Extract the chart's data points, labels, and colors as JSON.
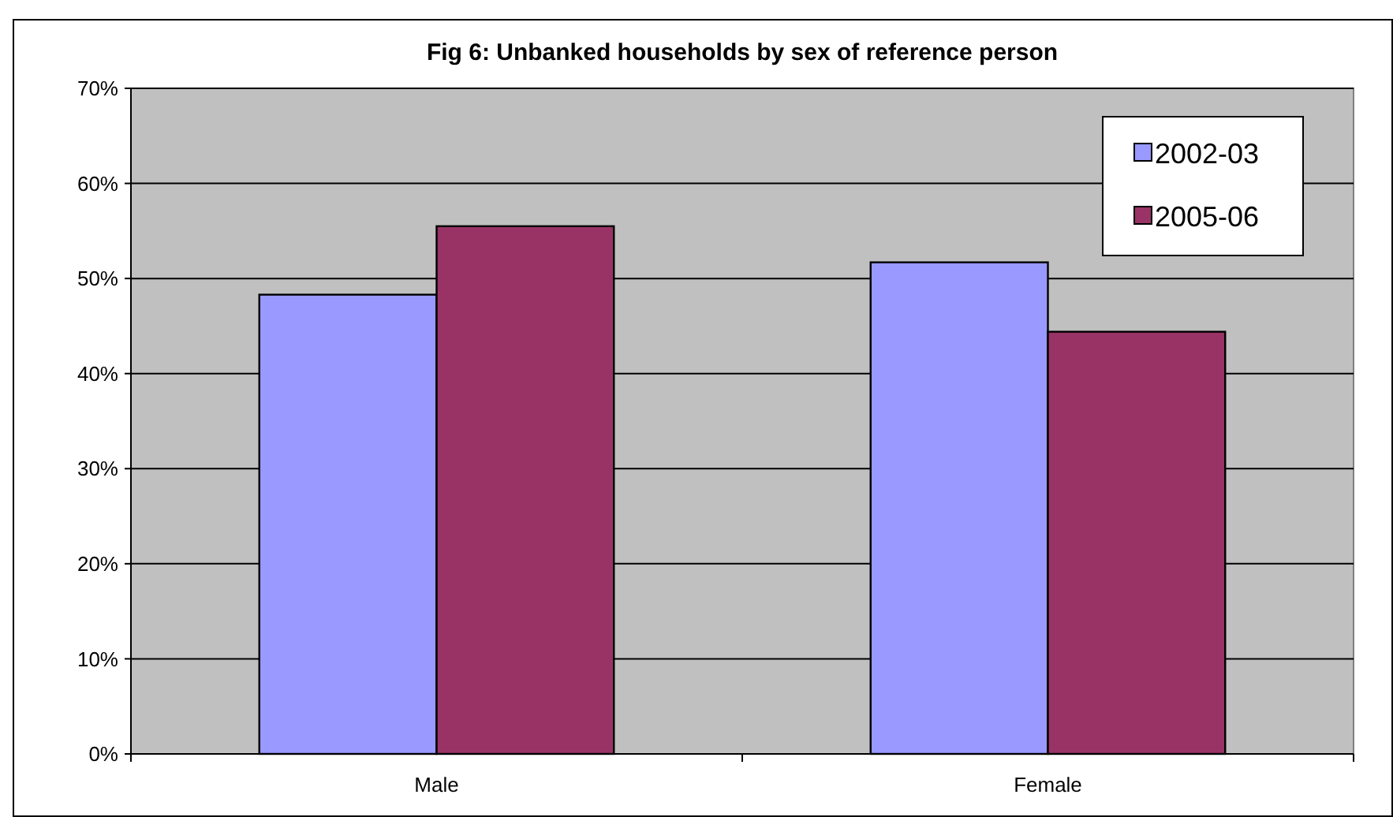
{
  "chart_data": {
    "type": "bar",
    "title": "Fig 6: Unbanked households by sex of reference person",
    "categories": [
      "Male",
      "Female"
    ],
    "series": [
      {
        "name": "2002-03",
        "color": "#9999ff",
        "values": [
          48.3,
          51.7
        ]
      },
      {
        "name": "2005-06",
        "color": "#993366",
        "values": [
          55.5,
          44.4
        ]
      }
    ],
    "ylim": [
      0,
      70
    ],
    "yticks": [
      {
        "value": 0,
        "label": "0%"
      },
      {
        "value": 10,
        "label": "10%"
      },
      {
        "value": 20,
        "label": "20%"
      },
      {
        "value": 30,
        "label": "30%"
      },
      {
        "value": 40,
        "label": "40%"
      },
      {
        "value": 50,
        "label": "50%"
      },
      {
        "value": 60,
        "label": "60%"
      },
      {
        "value": 70,
        "label": "70%"
      }
    ],
    "grid": "y",
    "legend": "top right"
  }
}
